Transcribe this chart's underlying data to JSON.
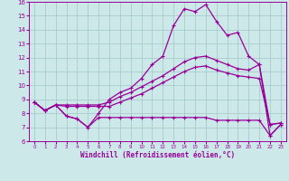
{
  "xlabel": "Windchill (Refroidissement éolien,°C)",
  "bg_color": "#cce8e8",
  "line_color": "#990099",
  "grid_color": "#aacccc",
  "xlim": [
    -0.5,
    23.5
  ],
  "ylim": [
    6,
    16
  ],
  "xticks": [
    0,
    1,
    2,
    3,
    4,
    5,
    6,
    7,
    8,
    9,
    10,
    11,
    12,
    13,
    14,
    15,
    16,
    17,
    18,
    19,
    20,
    21,
    22,
    23
  ],
  "yticks": [
    6,
    7,
    8,
    9,
    10,
    11,
    12,
    13,
    14,
    15,
    16
  ],
  "line1_x": [
    0,
    1,
    2,
    3,
    4,
    5,
    6,
    7,
    8,
    9,
    10,
    11,
    12,
    13,
    14,
    15,
    16,
    17,
    18,
    19,
    20,
    21,
    22,
    23
  ],
  "line1_y": [
    8.8,
    8.2,
    8.6,
    7.8,
    7.6,
    7.0,
    8.0,
    9.0,
    9.5,
    9.8,
    10.5,
    11.5,
    12.1,
    14.3,
    15.5,
    15.3,
    15.8,
    14.6,
    13.6,
    13.8,
    12.1,
    11.5,
    6.4,
    7.2
  ],
  "line2_x": [
    0,
    1,
    2,
    3,
    4,
    5,
    6,
    7,
    8,
    9,
    10,
    11,
    12,
    13,
    14,
    15,
    16,
    17,
    18,
    19,
    20,
    21,
    22,
    23
  ],
  "line2_y": [
    8.8,
    8.2,
    8.6,
    8.6,
    8.6,
    8.6,
    8.6,
    8.8,
    9.2,
    9.5,
    9.9,
    10.3,
    10.7,
    11.2,
    11.7,
    12.0,
    12.1,
    11.8,
    11.5,
    11.2,
    11.1,
    11.5,
    7.2,
    7.3
  ],
  "line3_x": [
    0,
    1,
    2,
    3,
    4,
    5,
    6,
    7,
    8,
    9,
    10,
    11,
    12,
    13,
    14,
    15,
    16,
    17,
    18,
    19,
    20,
    21,
    22,
    23
  ],
  "line3_y": [
    8.8,
    8.2,
    8.6,
    8.5,
    8.5,
    8.5,
    8.5,
    8.5,
    8.8,
    9.1,
    9.4,
    9.8,
    10.2,
    10.6,
    11.0,
    11.3,
    11.4,
    11.1,
    10.9,
    10.7,
    10.6,
    10.5,
    7.2,
    7.3
  ],
  "line4_x": [
    0,
    1,
    2,
    3,
    4,
    5,
    6,
    7,
    8,
    9,
    10,
    11,
    12,
    13,
    14,
    15,
    16,
    17,
    18,
    19,
    20,
    21,
    22,
    23
  ],
  "line4_y": [
    8.8,
    8.2,
    8.6,
    7.8,
    7.6,
    7.0,
    7.7,
    7.7,
    7.7,
    7.7,
    7.7,
    7.7,
    7.7,
    7.7,
    7.7,
    7.7,
    7.7,
    7.5,
    7.5,
    7.5,
    7.5,
    7.5,
    6.4,
    7.2
  ]
}
